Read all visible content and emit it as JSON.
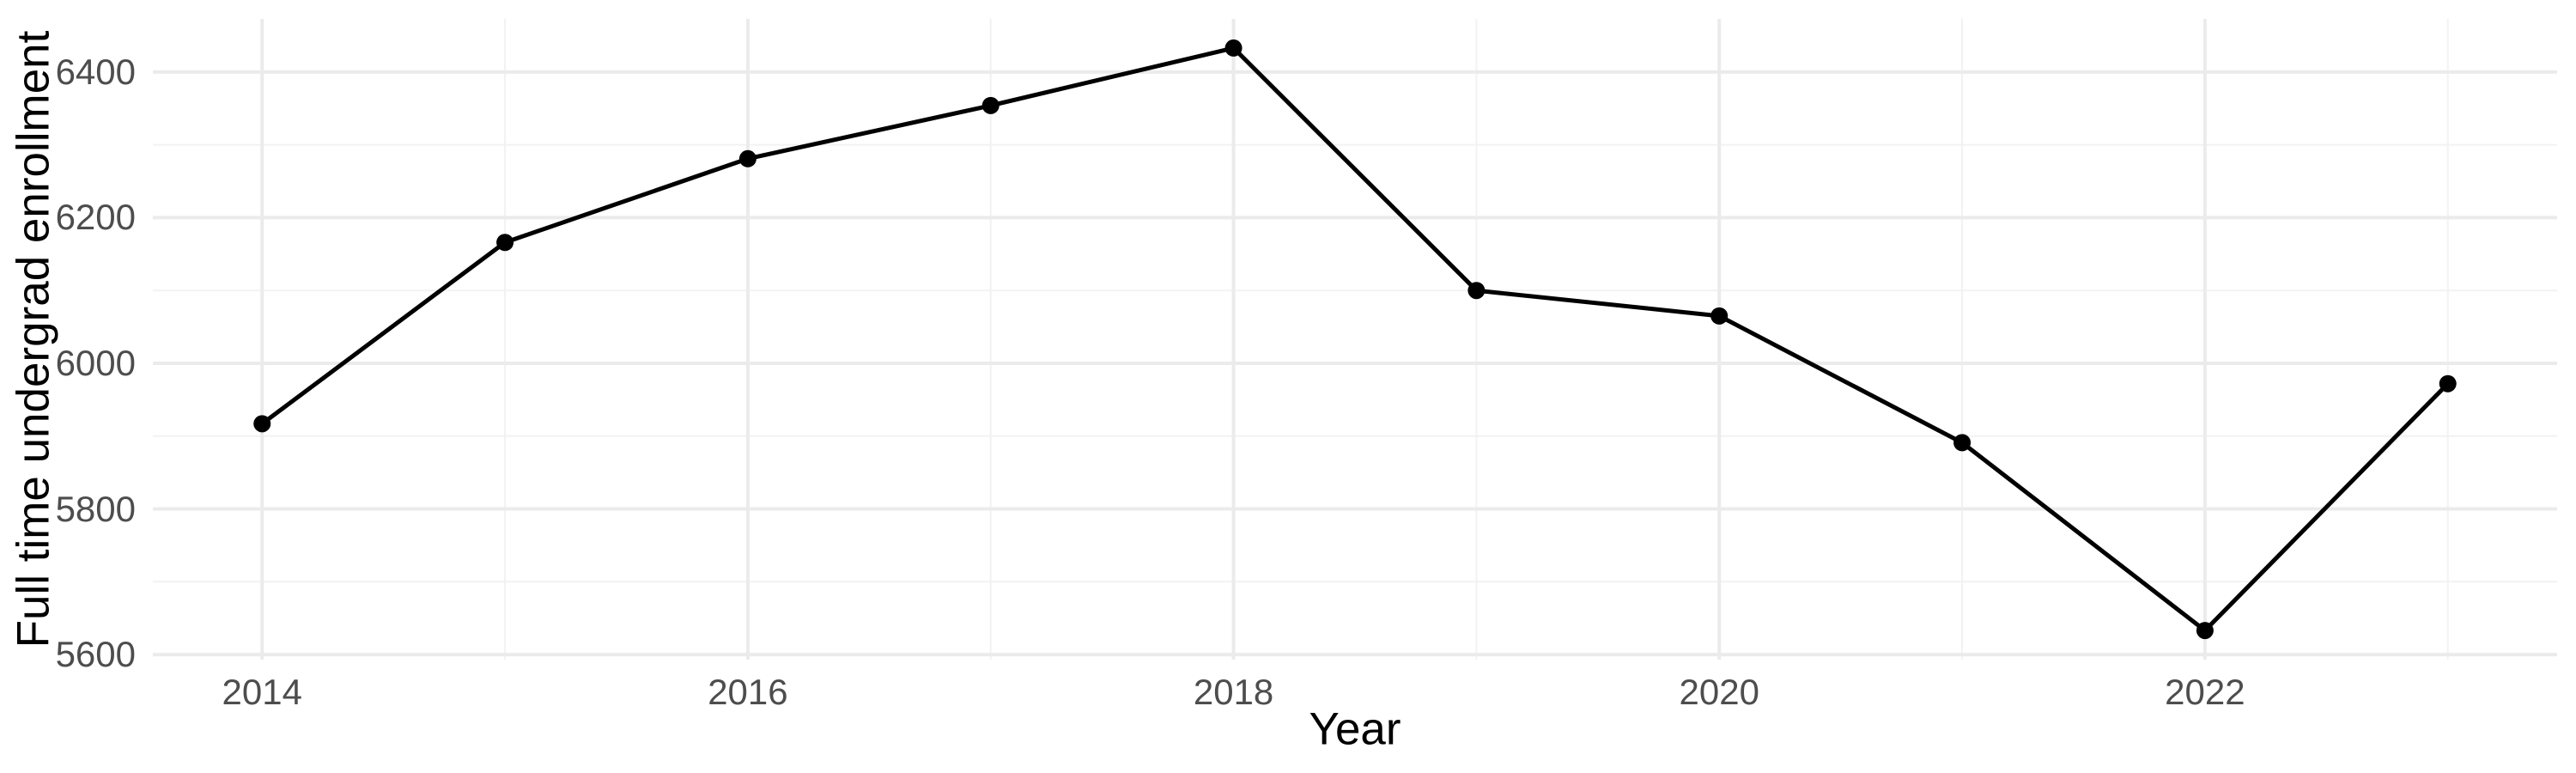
{
  "chart_data": {
    "type": "line",
    "title": "",
    "xlabel": "Year",
    "ylabel": "Full time undergrad enrollment",
    "x": [
      2014,
      2015,
      2016,
      2017,
      2018,
      2019,
      2020,
      2021,
      2022,
      2023
    ],
    "y": [
      5917,
      6166,
      6281,
      6354,
      6433,
      6100,
      6065,
      5891,
      5633,
      5972
    ],
    "x_tick_labels": [
      "2014",
      "2016",
      "2018",
      "2020",
      "2022"
    ],
    "x_ticks": [
      2014,
      2016,
      2018,
      2020,
      2022
    ],
    "x_minor_ticks": [
      2015,
      2017,
      2019,
      2021,
      2023
    ],
    "y_tick_labels": [
      "5600",
      "5800",
      "6000",
      "6200",
      "6400"
    ],
    "y_ticks": [
      5600,
      5800,
      6000,
      6200,
      6400
    ],
    "y_minor_ticks": [
      5700,
      5900,
      6100,
      6300
    ],
    "xlim": [
      2013.55,
      2023.45
    ],
    "ylim": [
      5593,
      6473
    ],
    "grid": "on",
    "legend": "none",
    "colors": {
      "line": "#000000",
      "point": "#000000",
      "grid_major": "#ebebeb",
      "grid_minor": "#f2f2f2",
      "tick_label": "#4d4d4d",
      "axis_title": "#000000",
      "background": "#ffffff"
    }
  }
}
